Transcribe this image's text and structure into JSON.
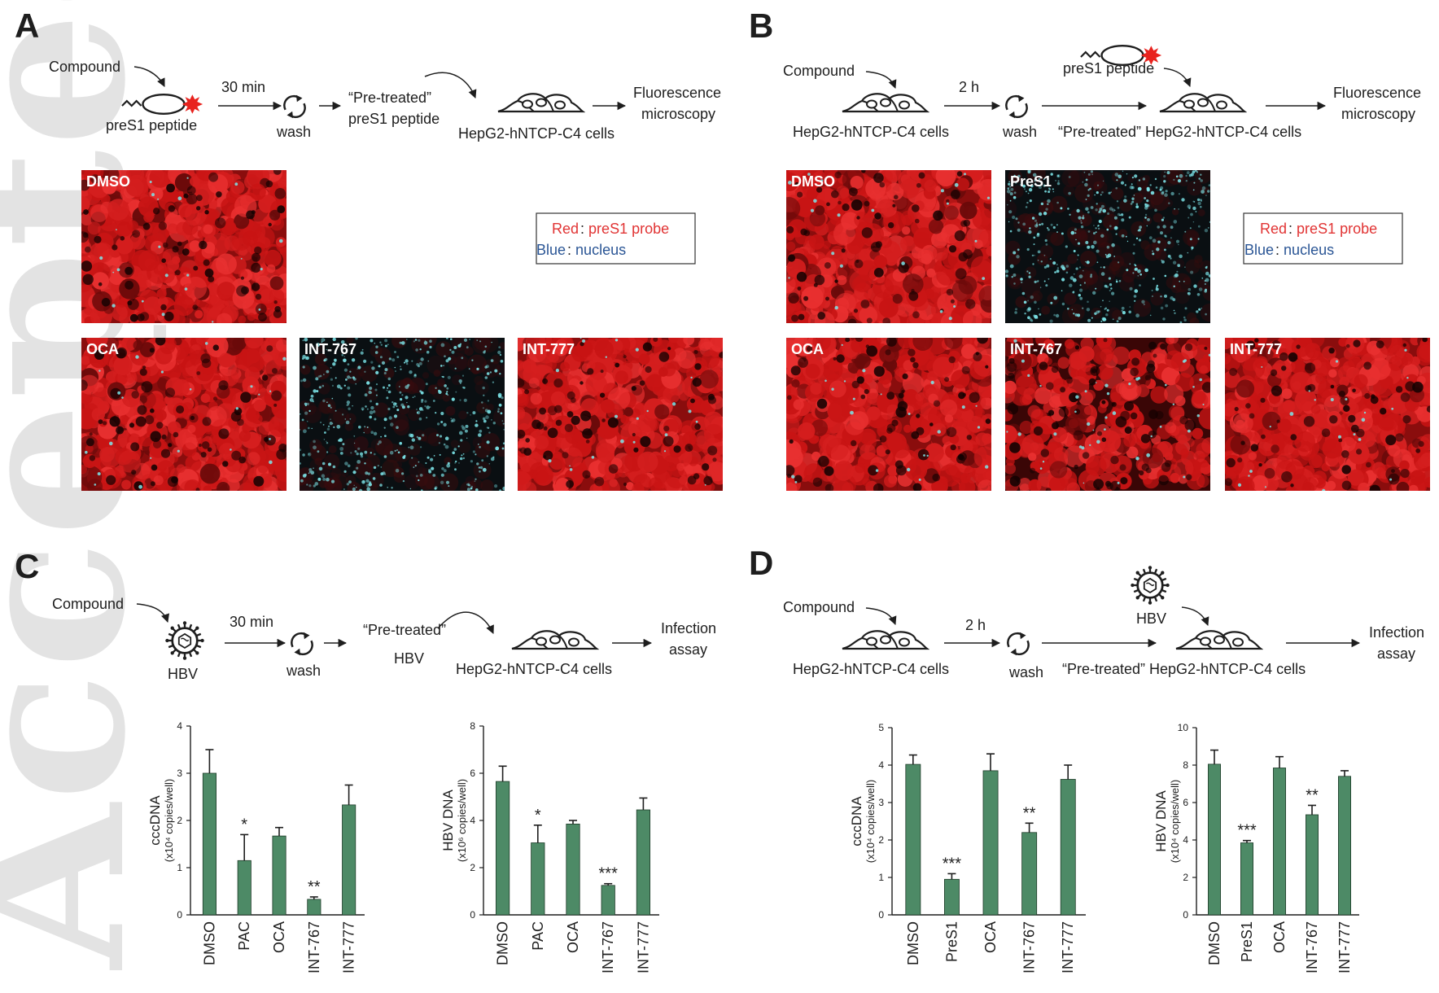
{
  "watermark": "Accepted Article",
  "colors": {
    "bar": "#4d8a66",
    "probe_red": "#e13434",
    "nucleus_blue": "#2a5595",
    "cell_red": "#d41e1e",
    "cyan": "#7de6ea"
  },
  "panelA": {
    "letter": "A",
    "schematic": {
      "compound": "Compound",
      "peptide": "preS1 peptide",
      "time": "30 min",
      "wash": "wash",
      "pretreated": [
        "“Pre-treated”",
        "preS1 peptide"
      ],
      "cells": "HepG2-hNTCP-C4 cells",
      "readout": [
        "Fluorescence",
        "microscopy"
      ]
    },
    "images": [
      {
        "label": "DMSO",
        "type": "red"
      },
      {
        "label": "OCA",
        "type": "red"
      },
      {
        "label": "INT-767",
        "type": "blue"
      },
      {
        "label": "INT-777",
        "type": "red"
      }
    ],
    "legend": {
      "red_word": "Red",
      "red_text": "preS1 probe",
      "blue_word": "Blue",
      "blue_text": "nucleus",
      "sep": ":"
    }
  },
  "panelB": {
    "letter": "B",
    "schematic": {
      "compound": "Compound",
      "cells_left": "HepG2-hNTCP-C4 cells",
      "time": "2 h",
      "wash": "wash",
      "peptide": "preS1 peptide",
      "pretreated_cells": "“Pre-treated” HepG2-hNTCP-C4 cells",
      "readout": [
        "Fluorescence",
        "microscopy"
      ]
    },
    "images": [
      {
        "label": "DMSO",
        "type": "red"
      },
      {
        "label": "PreS1",
        "type": "blue"
      },
      {
        "label": "OCA",
        "type": "red"
      },
      {
        "label": "INT-767",
        "type": "mixed"
      },
      {
        "label": "INT-777",
        "type": "red"
      }
    ],
    "legend": {
      "red_word": "Red",
      "red_text": "preS1 probe",
      "blue_word": "Blue",
      "blue_text": "nucleus",
      "sep": ":"
    }
  },
  "panelC": {
    "letter": "C",
    "schematic": {
      "compound": "Compound",
      "virus": "HBV",
      "time": "30 min",
      "wash": "wash",
      "pretreated": [
        "“Pre-treated”",
        "HBV"
      ],
      "cells": "HepG2-hNTCP-C4 cells",
      "readout": [
        "Infection",
        "assay"
      ]
    }
  },
  "panelD": {
    "letter": "D",
    "schematic": {
      "compound": "Compound",
      "cells_left": "HepG2-hNTCP-C4 cells",
      "time": "2 h",
      "wash": "wash",
      "virus": "HBV",
      "pretreated_cells": "“Pre-treated” HepG2-hNTCP-C4 cells",
      "readout": [
        "Infection",
        "assay"
      ]
    }
  },
  "chart_data": [
    {
      "type": "bar",
      "panel": "C",
      "categories": [
        "DMSO",
        "PAC",
        "OCA",
        "INT-767",
        "INT-777"
      ],
      "values": [
        3.0,
        1.15,
        1.67,
        0.33,
        2.33
      ],
      "errors": [
        0.5,
        0.55,
        0.18,
        0.05,
        0.42
      ],
      "significance": [
        "",
        "*",
        "",
        "**",
        ""
      ],
      "ylabel": "cccDNA",
      "ylabel_unit": "(x10⁴ copies/well)",
      "ylim": [
        0,
        4
      ],
      "yticks": [
        0,
        1,
        2,
        3,
        4
      ]
    },
    {
      "type": "bar",
      "panel": "C",
      "categories": [
        "DMSO",
        "PAC",
        "OCA",
        "INT-767",
        "INT-777"
      ],
      "values": [
        5.65,
        3.05,
        3.85,
        1.25,
        4.45
      ],
      "errors": [
        0.65,
        0.75,
        0.15,
        0.07,
        0.5
      ],
      "significance": [
        "",
        "*",
        "",
        "***",
        ""
      ],
      "ylabel": "HBV DNA",
      "ylabel_unit": "(x10⁶ copies/well)",
      "ylim": [
        0,
        8
      ],
      "yticks": [
        0,
        2,
        4,
        6,
        8
      ]
    },
    {
      "type": "bar",
      "panel": "D",
      "categories": [
        "DMSO",
        "PreS1",
        "OCA",
        "INT-767",
        "INT-777"
      ],
      "values": [
        4.02,
        0.95,
        3.85,
        2.2,
        3.62
      ],
      "errors": [
        0.25,
        0.15,
        0.45,
        0.25,
        0.38
      ],
      "significance": [
        "",
        "***",
        "",
        "**",
        ""
      ],
      "ylabel": "cccDNA",
      "ylabel_unit": "(x10⁴ copies/well)",
      "ylim": [
        0,
        5
      ],
      "yticks": [
        0,
        1,
        2,
        3,
        4,
        5
      ]
    },
    {
      "type": "bar",
      "panel": "D",
      "categories": [
        "DMSO",
        "PreS1",
        "OCA",
        "INT-767",
        "INT-777"
      ],
      "values": [
        8.05,
        3.85,
        7.85,
        5.35,
        7.4
      ],
      "errors": [
        0.75,
        0.12,
        0.6,
        0.5,
        0.3
      ],
      "significance": [
        "",
        "***",
        "",
        "**",
        ""
      ],
      "ylabel": "HBV DNA",
      "ylabel_unit": "(x10⁴ copies/well)",
      "ylim": [
        0,
        10
      ],
      "yticks": [
        0,
        2,
        4,
        6,
        8,
        10
      ]
    }
  ]
}
